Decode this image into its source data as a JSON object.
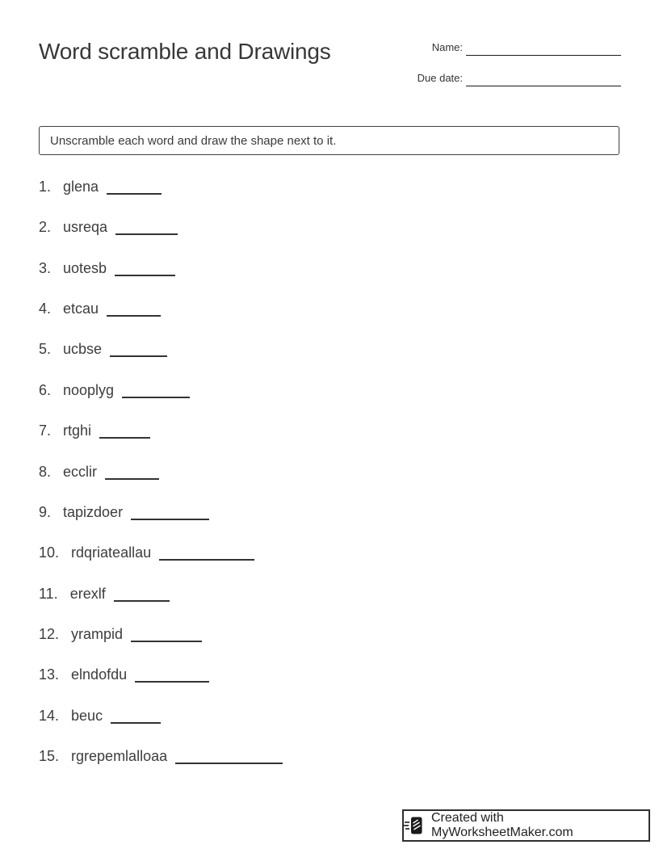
{
  "page": {
    "title": "Word scramble and Drawings",
    "name_label": "Name:",
    "due_date_label": "Due date:",
    "instructions": "Unscramble each word and draw the shape next to it."
  },
  "list": {
    "items": [
      {
        "number": "1.",
        "word": "glena",
        "blank_width": 68
      },
      {
        "number": "2.",
        "word": "usreqa",
        "blank_width": 77
      },
      {
        "number": "3.",
        "word": "uotesb",
        "blank_width": 75
      },
      {
        "number": "4.",
        "word": "etcau",
        "blank_width": 67
      },
      {
        "number": "5.",
        "word": "ucbse",
        "blank_width": 71
      },
      {
        "number": "6.",
        "word": "nooplyg",
        "blank_width": 84
      },
      {
        "number": "7.",
        "word": "rtghi",
        "blank_width": 63
      },
      {
        "number": "8.",
        "word": "ecclir",
        "blank_width": 67
      },
      {
        "number": "9.",
        "word": "tapizdoer",
        "blank_width": 97
      },
      {
        "number": "10.",
        "word": "rdqriateallau",
        "blank_width": 118
      },
      {
        "number": "11.",
        "word": "erexlf",
        "blank_width": 69
      },
      {
        "number": "12.",
        "word": "yrampid",
        "blank_width": 88
      },
      {
        "number": "13.",
        "word": "elndofdu",
        "blank_width": 92
      },
      {
        "number": "14.",
        "word": "beuc",
        "blank_width": 62
      },
      {
        "number": "15.",
        "word": "rgrepemlalloaa",
        "blank_width": 133
      }
    ]
  },
  "footer": {
    "credit": "Created with MyWorksheetMaker.com",
    "logo_icon": "worksheetmaker-logo"
  },
  "colors": {
    "text": "#3b3b3b",
    "line": "#333333",
    "border": "#3f3f3f"
  }
}
